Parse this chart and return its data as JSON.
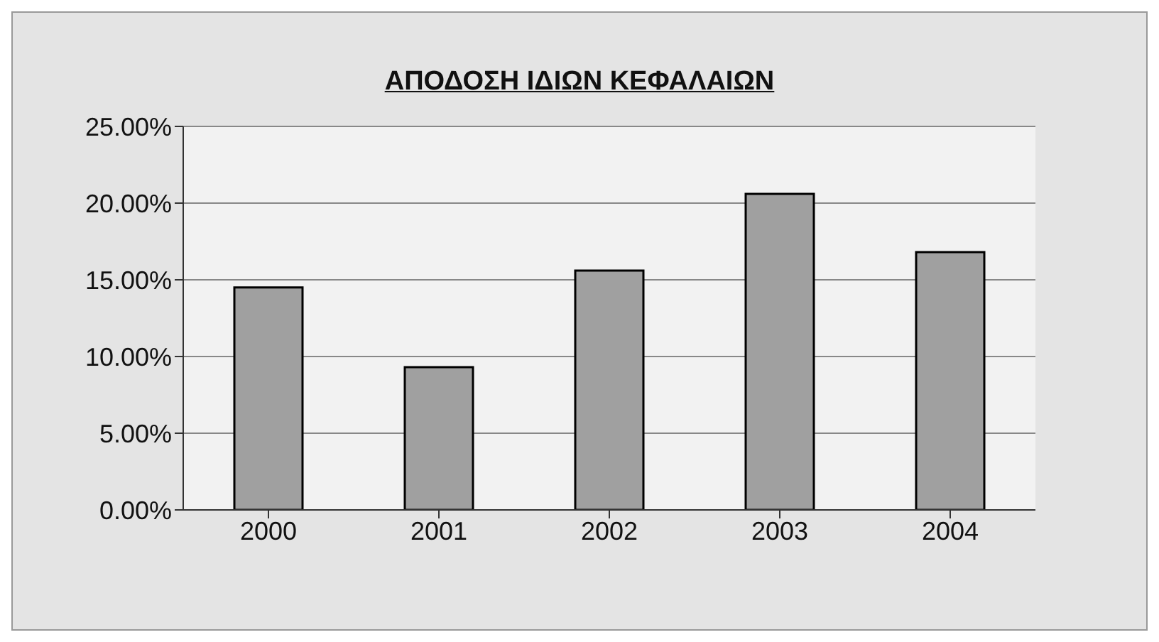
{
  "chart_data": {
    "type": "bar",
    "title": "ΑΠΟΔΟΣΗ ΙΔΙΩΝ ΚΕΦΑΛΑΙΩΝ",
    "categories": [
      "2000",
      "2001",
      "2002",
      "2003",
      "2004"
    ],
    "values": [
      0.145,
      0.093,
      0.156,
      0.206,
      0.168
    ],
    "color": "#a0a0a0",
    "ylim": [
      0,
      0.25
    ],
    "yticks": [
      {
        "value": 0,
        "label": "0.00%"
      },
      {
        "value": 0.05,
        "label": "5.00%"
      },
      {
        "value": 0.1,
        "label": "10.00%"
      },
      {
        "value": 0.15,
        "label": "15.00%"
      },
      {
        "value": 0.2,
        "label": "20.00%"
      },
      {
        "value": 0.25,
        "label": "25.00%"
      }
    ],
    "grid": "y"
  }
}
